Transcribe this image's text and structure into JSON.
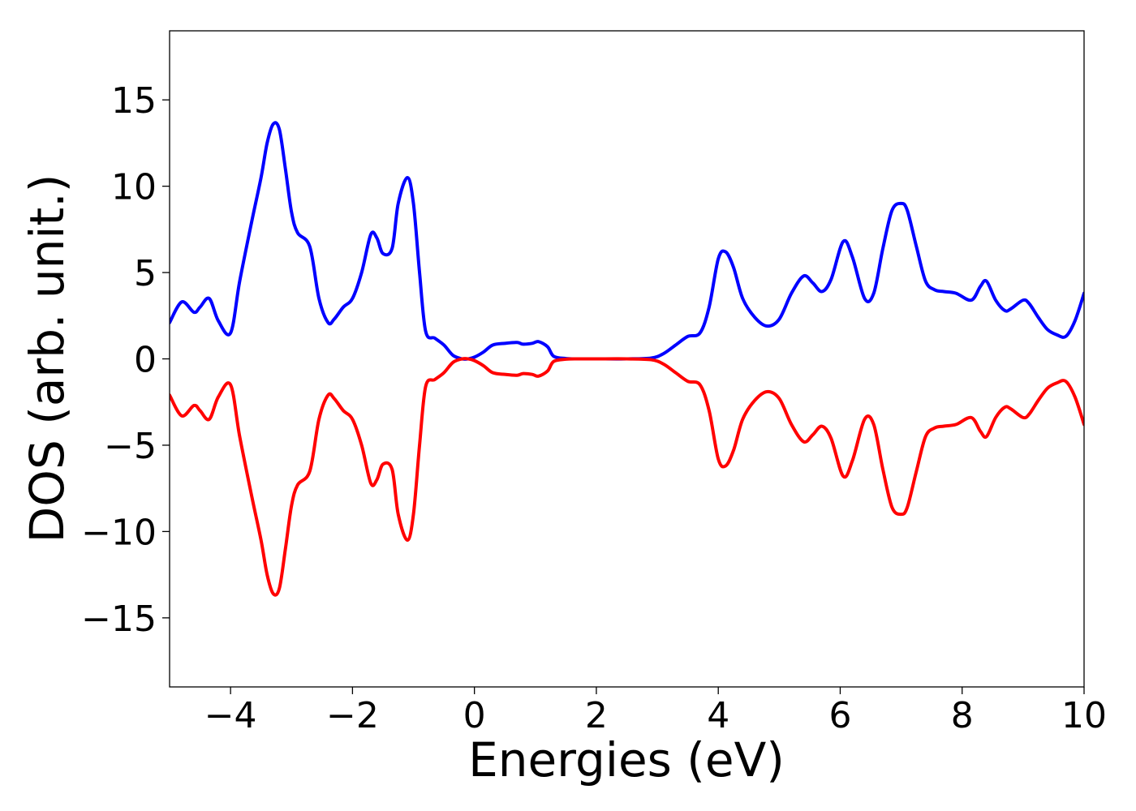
{
  "chart_data": {
    "type": "line",
    "title": "",
    "xlabel": "Energies (eV)",
    "ylabel": "DOS (arb. unit.)",
    "xlim": [
      -5,
      10
    ],
    "ylim": [
      -19,
      19
    ],
    "x_ticks": [
      -4,
      -2,
      0,
      2,
      4,
      6,
      8,
      10
    ],
    "x_tick_labels": [
      "−4",
      "−2",
      "0",
      "2",
      "4",
      "6",
      "8",
      "10"
    ],
    "y_ticks": [
      15,
      10,
      5,
      0,
      -5,
      -10,
      -15
    ],
    "y_tick_labels": [
      "15",
      "10",
      "5",
      "0",
      "−5",
      "−10",
      "−15"
    ],
    "grid": false,
    "legend": "none",
    "series": [
      {
        "color": "#0000ff",
        "x": [
          -5.0,
          -4.8,
          -4.6,
          -4.5,
          -4.35,
          -4.2,
          -4.0,
          -3.85,
          -3.65,
          -3.5,
          -3.4,
          -3.3,
          -3.2,
          -3.1,
          -3.0,
          -2.9,
          -2.7,
          -2.55,
          -2.4,
          -2.3,
          -2.15,
          -2.0,
          -1.85,
          -1.7,
          -1.6,
          -1.5,
          -1.35,
          -1.25,
          -1.1,
          -1.0,
          -0.9,
          -0.8,
          -0.65,
          -0.5,
          -0.35,
          -0.2,
          -0.1,
          0.0,
          0.15,
          0.3,
          0.5,
          0.7,
          0.8,
          0.95,
          1.05,
          1.2,
          1.3,
          1.5,
          1.7,
          2.0,
          2.5,
          2.9,
          3.1,
          3.3,
          3.5,
          3.7,
          3.85,
          4.0,
          4.12,
          4.25,
          4.4,
          4.6,
          4.8,
          5.0,
          5.2,
          5.4,
          5.55,
          5.7,
          5.85,
          6.05,
          6.2,
          6.4,
          6.55,
          6.7,
          6.85,
          7.0,
          7.1,
          7.25,
          7.4,
          7.55,
          7.7,
          7.9,
          8.15,
          8.3,
          8.4,
          8.55,
          8.7,
          8.8,
          9.0,
          9.1,
          9.25,
          9.4,
          9.55,
          9.7,
          9.85,
          10.0
        ],
        "values": [
          2.1,
          3.3,
          2.7,
          3.0,
          3.5,
          2.2,
          1.5,
          4.5,
          8.0,
          10.5,
          12.5,
          13.6,
          13.3,
          11.0,
          8.5,
          7.3,
          6.5,
          3.5,
          2.1,
          2.3,
          3.0,
          3.5,
          5.0,
          7.2,
          7.0,
          6.1,
          6.4,
          9.0,
          10.5,
          9.0,
          5.0,
          1.6,
          1.2,
          0.8,
          0.2,
          0.0,
          0.0,
          0.1,
          0.4,
          0.8,
          0.9,
          0.95,
          0.85,
          0.9,
          1.0,
          0.7,
          0.15,
          0.02,
          0.0,
          0.0,
          0.0,
          0.05,
          0.3,
          0.8,
          1.3,
          1.5,
          3.0,
          5.8,
          6.2,
          5.3,
          3.5,
          2.4,
          1.9,
          2.3,
          3.8,
          4.8,
          4.4,
          3.9,
          4.6,
          6.8,
          5.9,
          3.5,
          3.8,
          6.4,
          8.6,
          9.0,
          8.6,
          6.5,
          4.5,
          4.0,
          3.9,
          3.8,
          3.4,
          4.2,
          4.5,
          3.4,
          2.8,
          2.9,
          3.4,
          3.2,
          2.4,
          1.7,
          1.4,
          1.3,
          2.2,
          3.8
        ]
      },
      {
        "color": "#ff0000",
        "x": [
          -5.0,
          -4.8,
          -4.6,
          -4.5,
          -4.35,
          -4.2,
          -4.0,
          -3.85,
          -3.65,
          -3.5,
          -3.4,
          -3.3,
          -3.2,
          -3.1,
          -3.0,
          -2.9,
          -2.7,
          -2.55,
          -2.4,
          -2.3,
          -2.15,
          -2.0,
          -1.85,
          -1.7,
          -1.6,
          -1.5,
          -1.35,
          -1.25,
          -1.1,
          -1.0,
          -0.9,
          -0.8,
          -0.65,
          -0.5,
          -0.35,
          -0.2,
          -0.1,
          0.0,
          0.15,
          0.3,
          0.5,
          0.7,
          0.8,
          0.95,
          1.05,
          1.2,
          1.3,
          1.5,
          1.7,
          2.0,
          2.5,
          2.9,
          3.1,
          3.3,
          3.5,
          3.7,
          3.85,
          4.0,
          4.12,
          4.25,
          4.4,
          4.6,
          4.8,
          5.0,
          5.2,
          5.4,
          5.55,
          5.7,
          5.85,
          6.05,
          6.2,
          6.4,
          6.55,
          6.7,
          6.85,
          7.0,
          7.1,
          7.25,
          7.4,
          7.55,
          7.7,
          7.9,
          8.15,
          8.3,
          8.4,
          8.55,
          8.7,
          8.8,
          9.0,
          9.1,
          9.25,
          9.4,
          9.55,
          9.7,
          9.85,
          10.0
        ],
        "values": [
          -2.1,
          -3.3,
          -2.7,
          -3.0,
          -3.5,
          -2.2,
          -1.5,
          -4.5,
          -8.0,
          -10.5,
          -12.5,
          -13.6,
          -13.3,
          -11.0,
          -8.5,
          -7.3,
          -6.5,
          -3.5,
          -2.1,
          -2.3,
          -3.0,
          -3.5,
          -5.0,
          -7.2,
          -7.0,
          -6.1,
          -6.4,
          -9.0,
          -10.5,
          -9.0,
          -5.0,
          -1.6,
          -1.2,
          -0.8,
          -0.2,
          0.0,
          0.0,
          -0.1,
          -0.4,
          -0.8,
          -0.9,
          -0.95,
          -0.85,
          -0.9,
          -1.0,
          -0.7,
          -0.15,
          -0.02,
          0.0,
          0.0,
          0.0,
          -0.05,
          -0.3,
          -0.8,
          -1.3,
          -1.5,
          -3.0,
          -5.8,
          -6.2,
          -5.3,
          -3.5,
          -2.4,
          -1.9,
          -2.3,
          -3.8,
          -4.8,
          -4.4,
          -3.9,
          -4.6,
          -6.8,
          -5.9,
          -3.5,
          -3.8,
          -6.4,
          -8.6,
          -9.0,
          -8.6,
          -6.5,
          -4.5,
          -4.0,
          -3.9,
          -3.8,
          -3.4,
          -4.2,
          -4.5,
          -3.4,
          -2.8,
          -2.9,
          -3.4,
          -3.2,
          -2.4,
          -1.7,
          -1.4,
          -1.3,
          -2.2,
          -3.8
        ]
      }
    ]
  }
}
